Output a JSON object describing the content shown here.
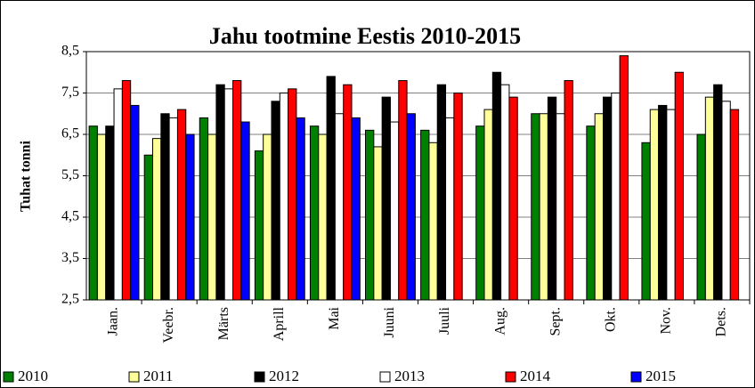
{
  "chart_data": {
    "type": "bar",
    "title": "Jahu tootmine Eestis 2010-2015",
    "y_label": "Tuhat tonni",
    "categories": [
      "Jaan.",
      "Veebr.",
      "Märts",
      "Aprill",
      "Mai",
      "Juuni",
      "Juuli",
      "Aug.",
      "Sept.",
      "Okt.",
      "Nov.",
      "Dets."
    ],
    "series": [
      {
        "name": "2010",
        "color": "#008000",
        "values": [
          6.7,
          6.0,
          6.9,
          6.1,
          6.7,
          6.6,
          6.6,
          6.7,
          7.0,
          6.7,
          6.3,
          6.5
        ]
      },
      {
        "name": "2011",
        "color": "#ffff99",
        "values": [
          6.5,
          6.4,
          6.5,
          6.5,
          6.5,
          6.2,
          6.3,
          7.1,
          7.0,
          7.0,
          7.1,
          7.4
        ]
      },
      {
        "name": "2012",
        "color": "#000000",
        "values": [
          6.7,
          7.0,
          7.7,
          7.3,
          7.9,
          7.4,
          7.7,
          8.0,
          7.4,
          7.4,
          7.2,
          7.7
        ]
      },
      {
        "name": "2013",
        "color": "#ffffff",
        "values": [
          7.6,
          6.9,
          7.6,
          7.5,
          7.0,
          6.8,
          6.9,
          7.7,
          7.0,
          7.5,
          7.1,
          7.3
        ]
      },
      {
        "name": "2014",
        "color": "#ff0000",
        "values": [
          7.8,
          7.1,
          7.8,
          7.6,
          7.7,
          7.8,
          7.5,
          7.4,
          7.8,
          8.4,
          8.0,
          7.1
        ]
      },
      {
        "name": "2015",
        "color": "#0000ff",
        "values": [
          7.2,
          6.5,
          6.8,
          6.9,
          6.9,
          7.0,
          null,
          null,
          null,
          null,
          null,
          null
        ]
      }
    ],
    "ylim": [
      2.5,
      8.5
    ],
    "yticks": [
      {
        "value": 2.5,
        "label": "2,5"
      },
      {
        "value": 3.5,
        "label": "3,5"
      },
      {
        "value": 4.5,
        "label": "4,5"
      },
      {
        "value": 5.5,
        "label": "5,5"
      },
      {
        "value": 6.5,
        "label": "6,5"
      },
      {
        "value": 7.5,
        "label": "7,5"
      },
      {
        "value": 8.5,
        "label": "8,5"
      }
    ],
    "grid": true,
    "legend": "bottom"
  }
}
